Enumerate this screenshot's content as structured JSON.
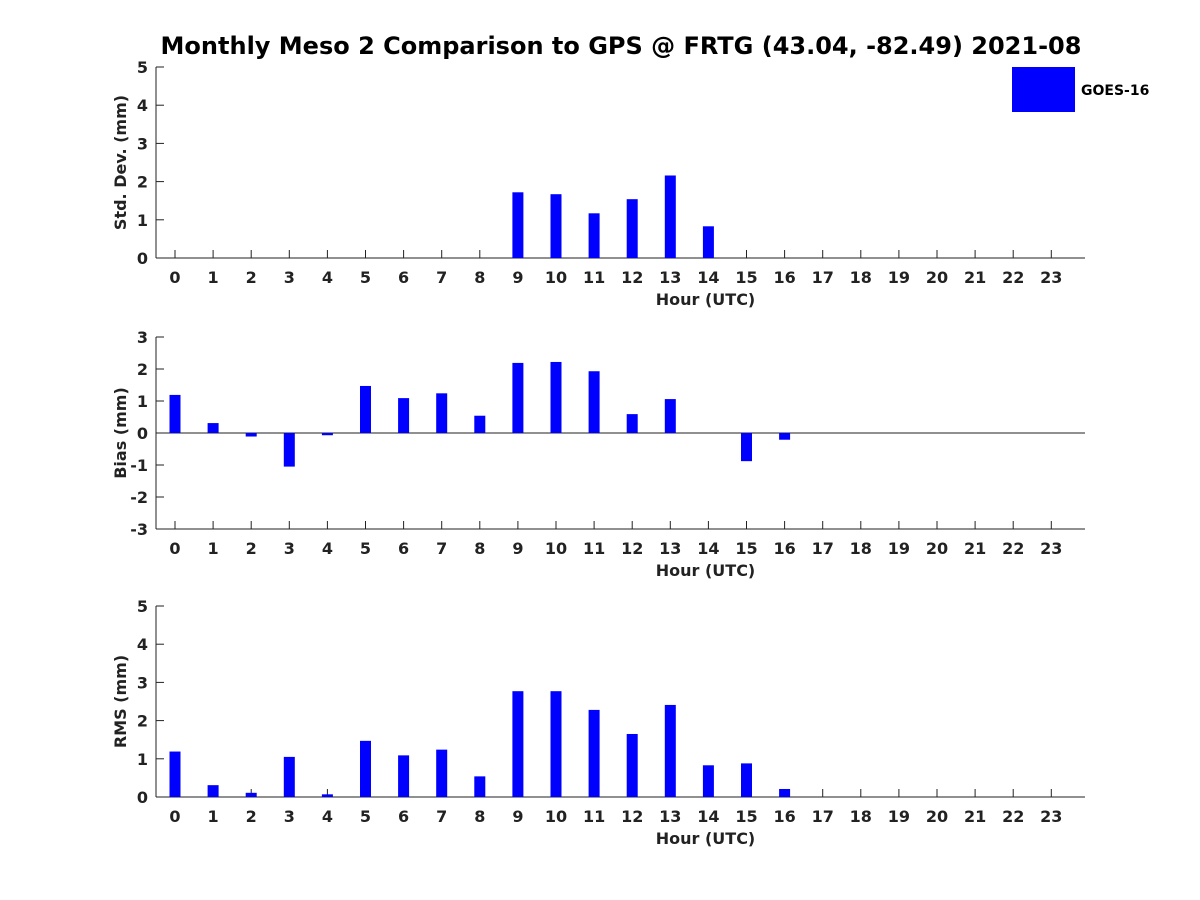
{
  "title": "Monthly Meso 2 Comparison to GPS @ FRTG (43.04, -82.49) 2021-08",
  "legend": {
    "label": "GOES-16",
    "color": "#0000ff"
  },
  "chart_data": [
    {
      "type": "bar",
      "name": "std-dev",
      "xlabel": "Hour (UTC)",
      "ylabel": "Std. Dev. (mm)",
      "ylim": [
        0,
        5
      ],
      "yticks": [
        0,
        1,
        2,
        3,
        4,
        5
      ],
      "categories": [
        "0",
        "1",
        "2",
        "3",
        "4",
        "5",
        "6",
        "7",
        "8",
        "9",
        "10",
        "11",
        "12",
        "13",
        "14",
        "15",
        "16",
        "17",
        "18",
        "19",
        "20",
        "21",
        "22",
        "23"
      ],
      "values": [
        null,
        null,
        null,
        null,
        null,
        null,
        null,
        null,
        null,
        1.72,
        1.67,
        1.17,
        1.54,
        2.16,
        0.83,
        null,
        null,
        null,
        null,
        null,
        null,
        null,
        null,
        null
      ],
      "zero_line": false
    },
    {
      "type": "bar",
      "name": "bias",
      "xlabel": "Hour (UTC)",
      "ylabel": "Bias (mm)",
      "ylim": [
        -3,
        3
      ],
      "yticks": [
        -3,
        -2,
        -1,
        0,
        1,
        2,
        3
      ],
      "categories": [
        "0",
        "1",
        "2",
        "3",
        "4",
        "5",
        "6",
        "7",
        "8",
        "9",
        "10",
        "11",
        "12",
        "13",
        "14",
        "15",
        "16",
        "17",
        "18",
        "19",
        "20",
        "21",
        "22",
        "23"
      ],
      "values": [
        1.19,
        0.31,
        -0.11,
        -1.05,
        -0.07,
        1.47,
        1.09,
        1.24,
        0.54,
        2.19,
        2.22,
        1.93,
        0.59,
        1.06,
        null,
        -0.88,
        -0.21,
        null,
        null,
        null,
        null,
        null,
        null,
        null
      ],
      "zero_line": true
    },
    {
      "type": "bar",
      "name": "rms",
      "xlabel": "Hour (UTC)",
      "ylabel": "RMS (mm)",
      "ylim": [
        0,
        5
      ],
      "yticks": [
        0,
        1,
        2,
        3,
        4,
        5
      ],
      "categories": [
        "0",
        "1",
        "2",
        "3",
        "4",
        "5",
        "6",
        "7",
        "8",
        "9",
        "10",
        "11",
        "12",
        "13",
        "14",
        "15",
        "16",
        "17",
        "18",
        "19",
        "20",
        "21",
        "22",
        "23"
      ],
      "values": [
        1.19,
        0.31,
        0.11,
        1.05,
        0.07,
        1.47,
        1.09,
        1.24,
        0.54,
        2.77,
        2.77,
        2.28,
        1.65,
        2.41,
        0.83,
        0.88,
        0.21,
        null,
        null,
        null,
        null,
        null,
        null,
        null
      ],
      "zero_line": false
    }
  ]
}
